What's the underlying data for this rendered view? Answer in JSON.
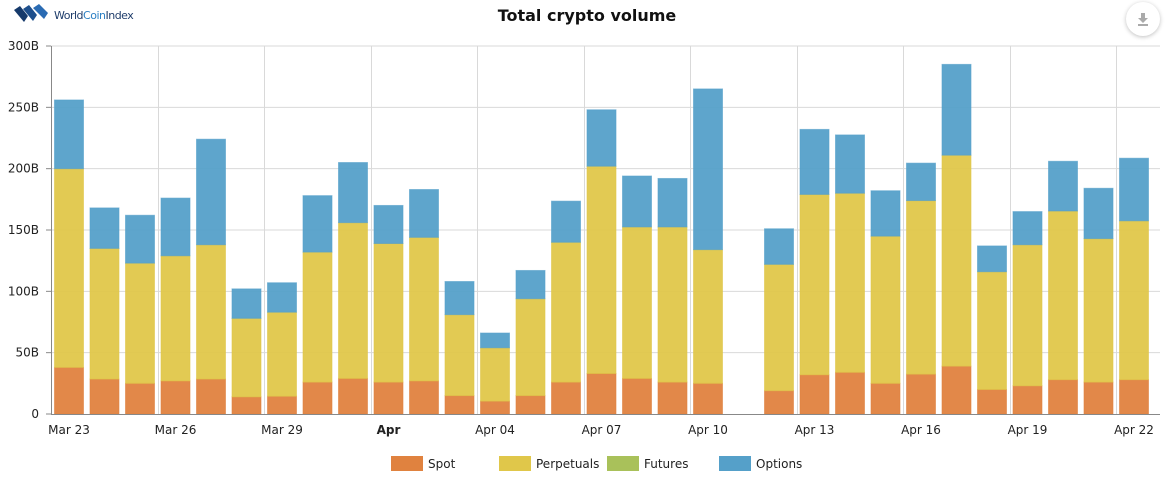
{
  "header": {
    "logo_text_prefix": "World",
    "logo_text_mid": "Coin",
    "logo_text_suffix": "Index",
    "download_icon": "download-icon"
  },
  "chart_data": {
    "type": "bar",
    "stacked": true,
    "title": "Total crypto volume",
    "xlabel": "",
    "ylabel": "",
    "ylim": [
      0,
      300
    ],
    "yunit": "B",
    "yticks": [
      "0",
      "50B",
      "100B",
      "150B",
      "200B",
      "250B",
      "300B"
    ],
    "ytick_values": [
      0,
      50,
      100,
      150,
      200,
      250,
      300
    ],
    "grid": true,
    "legend_position": "bottom",
    "categories": [
      "Mar 23",
      "Mar 24",
      "Mar 25",
      "Mar 26",
      "Mar 27",
      "Mar 28",
      "Mar 29",
      "Mar 30",
      "Mar 31",
      "Apr 01",
      "Apr 02",
      "Apr 03",
      "Apr 04",
      "Apr 05",
      "Apr 06",
      "Apr 07",
      "Apr 08",
      "Apr 09",
      "Apr 10",
      "Apr 11",
      "Apr 12",
      "Apr 13",
      "Apr 14",
      "Apr 15",
      "Apr 16",
      "Apr 17",
      "Apr 18",
      "Apr 19",
      "Apr 20",
      "Apr 21",
      "Apr 22"
    ],
    "xtick_labels": [
      {
        "index": 0,
        "label": "Mar 23",
        "bold": false
      },
      {
        "index": 3,
        "label": "Mar 26",
        "bold": false
      },
      {
        "index": 6,
        "label": "Mar 29",
        "bold": false
      },
      {
        "index": 9,
        "label": "Apr",
        "bold": true
      },
      {
        "index": 12,
        "label": "Apr 04",
        "bold": false
      },
      {
        "index": 15,
        "label": "Apr 07",
        "bold": false
      },
      {
        "index": 18,
        "label": "Apr 10",
        "bold": false
      },
      {
        "index": 21,
        "label": "Apr 13",
        "bold": false
      },
      {
        "index": 24,
        "label": "Apr 16",
        "bold": false
      },
      {
        "index": 27,
        "label": "Apr 19",
        "bold": false
      },
      {
        "index": 30,
        "label": "Apr 22",
        "bold": false
      }
    ],
    "series": [
      {
        "name": "Spot",
        "color": "#e0823f",
        "values": [
          38,
          28.5,
          25,
          27,
          28.5,
          14,
          14.5,
          26,
          29,
          26,
          27,
          15,
          10.5,
          15,
          26,
          33,
          29,
          26,
          25,
          0,
          19,
          32,
          34,
          25,
          32.5,
          39,
          20,
          23,
          28,
          26,
          28
        ]
      },
      {
        "name": "Perpetuals",
        "color": "#e0c74a",
        "values": [
          162,
          106.5,
          98,
          102,
          109.5,
          64,
          68.5,
          106,
          127,
          113,
          117,
          66,
          43.5,
          79,
          114,
          169,
          123.5,
          126.5,
          109,
          0,
          103,
          147,
          146,
          120,
          141.5,
          172,
          96,
          115,
          137.5,
          117,
          129.5
        ]
      },
      {
        "name": "Futures",
        "color": "#a9c15a",
        "values": [
          0,
          0,
          0,
          0,
          0,
          0,
          0,
          0,
          0,
          0,
          0,
          0,
          0,
          0,
          0,
          0,
          0,
          0,
          0,
          0,
          0,
          0,
          0,
          0,
          0,
          0,
          0,
          0,
          0,
          0,
          0
        ]
      },
      {
        "name": "Options",
        "color": "#55a0c9",
        "values": [
          56,
          33,
          39,
          47,
          86,
          24,
          24,
          46,
          49,
          31,
          39,
          27,
          12,
          23,
          33.5,
          46,
          41.5,
          39.5,
          131,
          0,
          29,
          53,
          47.5,
          37,
          30.5,
          74,
          21,
          27,
          40.5,
          41,
          51
        ]
      }
    ]
  }
}
